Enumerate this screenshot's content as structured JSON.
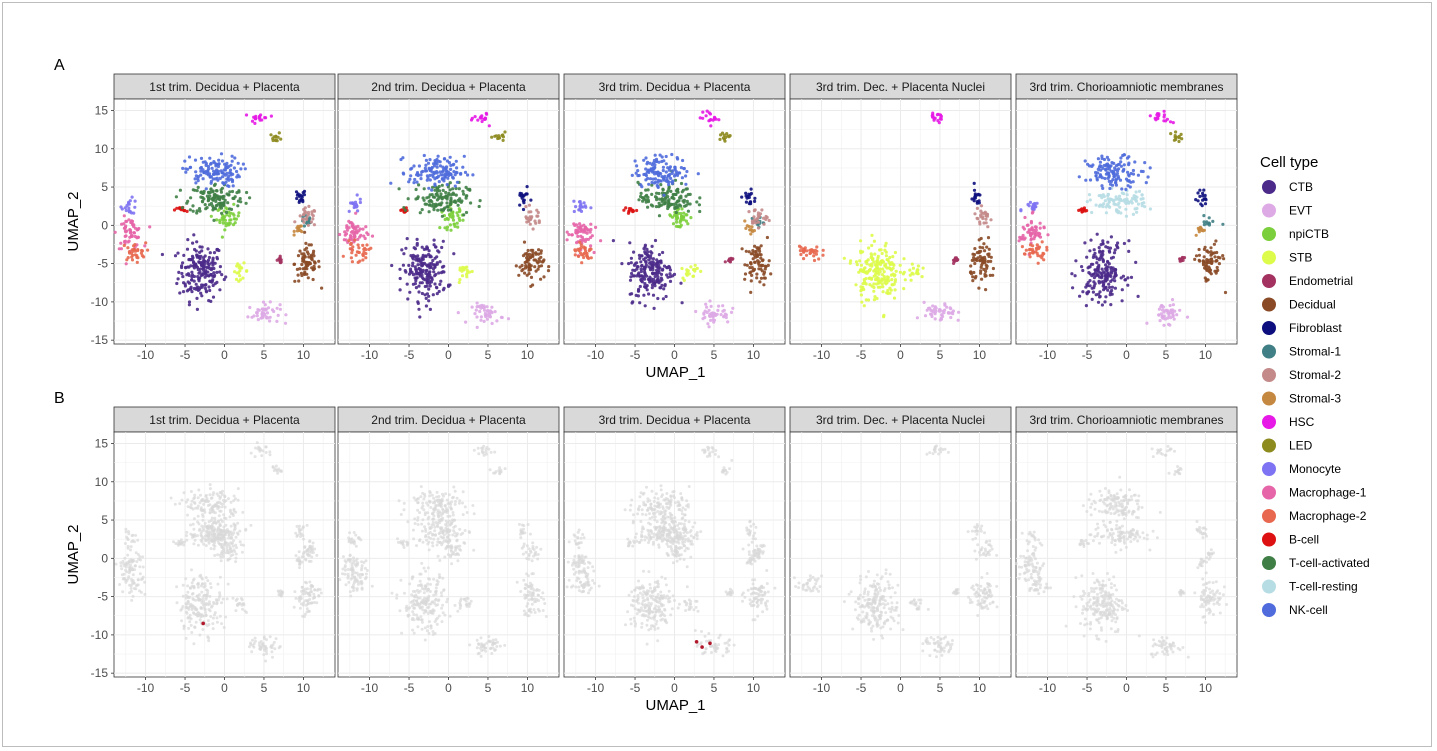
{
  "chart_data": [
    {
      "type": "scatter",
      "panel_label": "A",
      "xlabel": "UMAP_1",
      "ylabel": "UMAP_2",
      "xlim": [
        -14,
        14
      ],
      "ylim": [
        -15.5,
        16.5
      ],
      "x_ticks": [
        "-10",
        "-5",
        "0",
        "5",
        "10"
      ],
      "y_ticks": [
        "15",
        "10",
        "5",
        "0",
        "-5",
        "-10",
        "-15"
      ],
      "grid": true,
      "legend_position": "right",
      "facets": [
        "1st trim. Decidua + Placenta",
        "2nd trim. Decidua + Placenta",
        "3rd trim. Decidua + Placenta",
        "3rd trim. Dec. + Placenta Nuclei",
        "3rd trim. Chorioamniotic membranes"
      ],
      "clusters": [
        {
          "type": "CTB",
          "x": -3,
          "y": -6,
          "rx": 2.8,
          "ry": 3.8
        },
        {
          "type": "EVT",
          "x": 5,
          "y": -11.5,
          "rx": 2,
          "ry": 1.3
        },
        {
          "type": "npiCTB",
          "x": 0.5,
          "y": 1,
          "rx": 1.5,
          "ry": 1.5
        },
        {
          "type": "STB",
          "x": 2,
          "y": -6,
          "rx": 1,
          "ry": 1
        },
        {
          "type": "Endometrial",
          "x": 7,
          "y": -4.5,
          "rx": 0.4,
          "ry": 0.4
        },
        {
          "type": "Decidual",
          "x": 10.5,
          "y": -5,
          "rx": 1.6,
          "ry": 2.5
        },
        {
          "type": "Fibroblast",
          "x": 9.5,
          "y": 3.5,
          "rx": 0.8,
          "ry": 1.2
        },
        {
          "type": "Stromal-1",
          "x": 10.5,
          "y": 0.5,
          "rx": 0.8,
          "ry": 0.8
        },
        {
          "type": "Stromal-2",
          "x": 10.5,
          "y": 1,
          "rx": 1.2,
          "ry": 1.2
        },
        {
          "type": "Stromal-3",
          "x": 9.5,
          "y": -0.5,
          "rx": 0.6,
          "ry": 0.6
        },
        {
          "type": "HSC",
          "x": 4.5,
          "y": 14,
          "rx": 1.2,
          "ry": 0.8
        },
        {
          "type": "LED",
          "x": 6.5,
          "y": 11.5,
          "rx": 0.8,
          "ry": 0.6
        },
        {
          "type": "Monocyte",
          "x": -12,
          "y": 2.5,
          "rx": 1,
          "ry": 1
        },
        {
          "type": "Macrophage-1",
          "x": -12,
          "y": -1,
          "rx": 1.6,
          "ry": 2
        },
        {
          "type": "Macrophage-2",
          "x": -11.5,
          "y": -3.5,
          "rx": 1.5,
          "ry": 1.2
        },
        {
          "type": "B-cell",
          "x": -5.5,
          "y": 2,
          "rx": 0.8,
          "ry": 0.4
        },
        {
          "type": "T-cell-activated",
          "x": -1,
          "y": 3.5,
          "rx": 3.5,
          "ry": 2
        },
        {
          "type": "T-cell-resting",
          "x": -1,
          "y": 3,
          "rx": 3.5,
          "ry": 1.5
        },
        {
          "type": "NK-cell",
          "x": -1.5,
          "y": 7,
          "rx": 3.5,
          "ry": 2
        }
      ]
    },
    {
      "type": "scatter",
      "panel_label": "B",
      "xlabel": "UMAP_1",
      "ylabel": "UMAP_2",
      "xlim": [
        -14,
        14
      ],
      "ylim": [
        -15.5,
        16.5
      ],
      "x_ticks": [
        "-10",
        "-5",
        "0",
        "5",
        "10"
      ],
      "y_ticks": [
        "15",
        "10",
        "5",
        "0",
        "-5",
        "-10",
        "-15"
      ],
      "grid": true,
      "facets": [
        "1st trim. Decidua + Placenta",
        "2nd trim. Decidua + Placenta",
        "3rd trim. Decidua + Placenta",
        "3rd trim. Dec. + Placenta Nuclei",
        "3rd trim. Chorioamniotic membranes"
      ],
      "background_color": "#d9d9d9",
      "highlight_color": "#b2182b",
      "highlighted_points": [
        {
          "facet": 0,
          "x": -2.7,
          "y": -8.5
        },
        {
          "facet": 2,
          "x": 2.8,
          "y": -10.9
        },
        {
          "facet": 2,
          "x": 3.5,
          "y": -11.6
        },
        {
          "facet": 2,
          "x": 4.5,
          "y": -11.1
        }
      ]
    }
  ],
  "legend": {
    "title": "Cell type",
    "items": [
      {
        "label": "CTB",
        "color": "#4b2a8a"
      },
      {
        "label": "EVT",
        "color": "#ddaae6"
      },
      {
        "label": "npiCTB",
        "color": "#7ccf3c"
      },
      {
        "label": "STB",
        "color": "#ddfb4a"
      },
      {
        "label": "Endometrial",
        "color": "#a33261"
      },
      {
        "label": "Decidual",
        "color": "#8a4a26"
      },
      {
        "label": "Fibroblast",
        "color": "#0d0f7e"
      },
      {
        "label": "Stromal-1",
        "color": "#3f7f85"
      },
      {
        "label": "Stromal-2",
        "color": "#c48a8a"
      },
      {
        "label": "Stromal-3",
        "color": "#c58840"
      },
      {
        "label": "HSC",
        "color": "#e619e6"
      },
      {
        "label": "LED",
        "color": "#8d8a1e"
      },
      {
        "label": "Monocyte",
        "color": "#7e73f2"
      },
      {
        "label": "Macrophage-1",
        "color": "#e565a8"
      },
      {
        "label": "Macrophage-2",
        "color": "#e8684f"
      },
      {
        "label": "B-cell",
        "color": "#dd1111"
      },
      {
        "label": "T-cell-activated",
        "color": "#3f7f46"
      },
      {
        "label": "T-cell-resting",
        "color": "#b7dde4"
      },
      {
        "label": "NK-cell",
        "color": "#4f6bdc"
      }
    ]
  }
}
